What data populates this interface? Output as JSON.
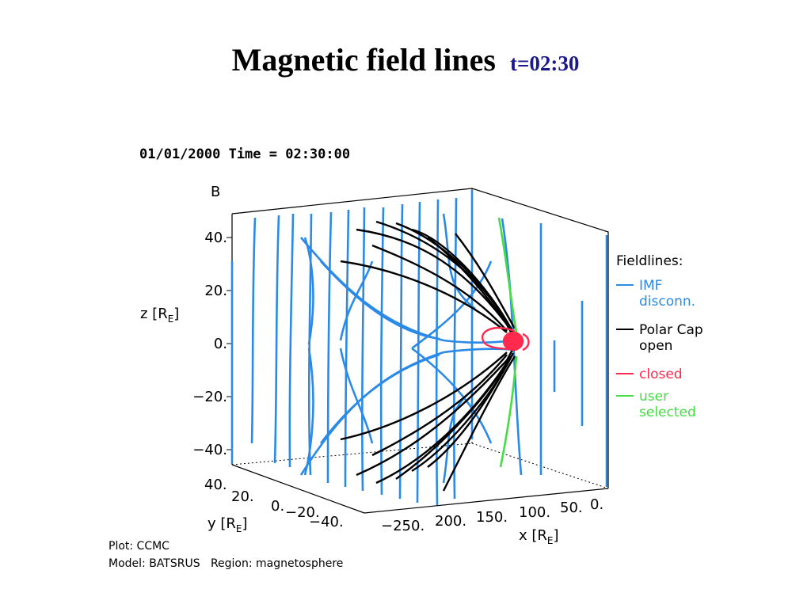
{
  "slide": {
    "title": "Magnetic field lines",
    "time_label": "t=02:30"
  },
  "plot": {
    "header": "01/01/2000 Time = 02:30:00",
    "quantity": "B",
    "z_axis": {
      "label": "z [R",
      "sub": "E",
      "close": "]",
      "ticks": [
        "40.",
        "20.",
        "0.",
        "−20.",
        "−40."
      ]
    },
    "y_axis": {
      "label": "y [R",
      "sub": "E",
      "close": "]",
      "ticks": [
        "40.",
        "20.",
        "0.",
        "−20.",
        "−40."
      ]
    },
    "x_axis": {
      "label": "x [R",
      "sub": "E",
      "close": "]",
      "ticks": [
        "−250.",
        "200.",
        "150.",
        "100.",
        "50.",
        "0."
      ]
    },
    "legend": {
      "title": "Fieldlines:",
      "items": [
        {
          "line1": "IMF",
          "line2": "disconn.",
          "color": "#2b8ae6"
        },
        {
          "line1": "Polar Cap",
          "line2": "open",
          "color": "#000000"
        },
        {
          "line1": "closed",
          "line2": "",
          "color": "#ff2a4d"
        },
        {
          "line1": "user",
          "line2": "selected",
          "color": "#44dd44"
        }
      ]
    }
  },
  "footer": {
    "line1": "Plot: CCMC",
    "line2": "Model: BATSRUS   Region: magnetosphere"
  }
}
